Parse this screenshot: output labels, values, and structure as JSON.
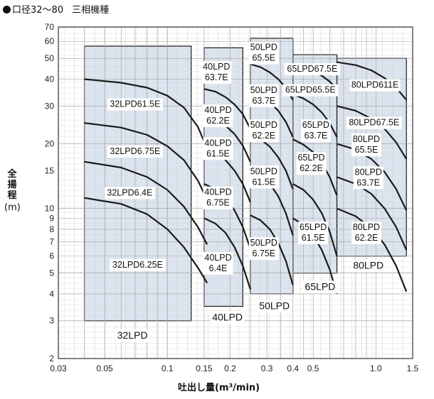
{
  "header": {
    "title": "口径32～80",
    "subtitle": "三相機種"
  },
  "chart_data": {
    "type": "area",
    "title": "口径32～80　三相機種",
    "xlabel": "吐出し量(m³/min)",
    "ylabel": [
      "全",
      "揚",
      "程",
      "(m)"
    ],
    "xscale": "log",
    "yscale": "log",
    "xlim": [
      0.03,
      1.5
    ],
    "ylim": [
      2,
      70
    ],
    "grid": true,
    "x_ticks": [
      {
        "v": 0.03,
        "label": "0.03"
      },
      {
        "v": 0.05,
        "label": "0.05"
      },
      {
        "v": 0.1,
        "label": "0.1"
      },
      {
        "v": 0.15,
        "label": "0.15"
      },
      {
        "v": 0.2,
        "label": "0.2"
      },
      {
        "v": 0.3,
        "label": "0.3"
      },
      {
        "v": 0.4,
        "label": "0.4"
      },
      {
        "v": 0.5,
        "label": "0.5"
      },
      {
        "v": 1.0,
        "label": "1.0"
      },
      {
        "v": 1.5,
        "label": "1.5"
      }
    ],
    "y_ticks": [
      {
        "v": 2,
        "label": "2"
      },
      {
        "v": 3,
        "label": "3"
      },
      {
        "v": 4,
        "label": "4"
      },
      {
        "v": 5,
        "label": "5"
      },
      {
        "v": 6,
        "label": "6"
      },
      {
        "v": 7,
        "label": "7"
      },
      {
        "v": 8,
        "label": "8"
      },
      {
        "v": 9,
        "label": "9"
      },
      {
        "v": 10,
        "label": "10"
      },
      {
        "v": 15,
        "label": "15"
      },
      {
        "v": 20,
        "label": "20"
      },
      {
        "v": 30,
        "label": "30"
      },
      {
        "v": 40,
        "label": "40"
      },
      {
        "v": 50,
        "label": "50"
      },
      {
        "v": 60,
        "label": "60"
      },
      {
        "v": 70,
        "label": "70"
      }
    ],
    "families": [
      {
        "name": "32LPD",
        "region": {
          "x": [
            0.04,
            0.13
          ],
          "y": [
            3,
            57
          ]
        },
        "label_at": {
          "x": 0.068,
          "y": 2.55
        },
        "models": [
          {
            "name": "32LPD61.5E",
            "curve": {
              "x": [
                0.04,
                0.06,
                0.08,
                0.1,
                0.12,
                0.14,
                0.155
              ],
              "y": [
                40,
                38.5,
                36.5,
                33.5,
                29.5,
                24,
                19
              ]
            },
            "label_at": {
              "x": 0.07,
              "y": 30.5
            }
          },
          {
            "name": "32LPD6.75E",
            "curve": {
              "x": [
                0.04,
                0.06,
                0.08,
                0.1,
                0.12,
                0.14,
                0.155
              ],
              "y": [
                25,
                23.8,
                22,
                19.5,
                16.8,
                13.5,
                11
              ]
            },
            "label_at": {
              "x": 0.07,
              "y": 18.4
            }
          },
          {
            "name": "32LPD6.4E",
            "curve": {
              "x": [
                0.04,
                0.06,
                0.08,
                0.1,
                0.12,
                0.14,
                0.155
              ],
              "y": [
                16.5,
                15.5,
                14,
                12.2,
                10.2,
                8.2,
                6.8
              ]
            },
            "label_at": {
              "x": 0.066,
              "y": 11.8
            }
          },
          {
            "name": "32LPD6.25E",
            "curve": {
              "x": [
                0.04,
                0.06,
                0.08,
                0.1,
                0.12,
                0.14,
                0.155
              ],
              "y": [
                11.2,
                10.5,
                9.4,
                8,
                6.6,
                5.3,
                4.5
              ]
            },
            "label_at": {
              "x": 0.072,
              "y": 5.45
            }
          }
        ]
      },
      {
        "name": "40LPD",
        "region": {
          "x": [
            0.15,
            0.23
          ],
          "y": [
            3.5,
            56
          ]
        },
        "label_at": {
          "x": 0.194,
          "y": 3.1
        },
        "models": [
          {
            "name": [
              "40LPD",
              "63.7E"
            ],
            "curve": {
              "x": [
                0.15,
                0.17,
                0.19,
                0.21,
                0.23,
                0.25
              ],
              "y": [
                36,
                35,
                33,
                30.5,
                27.5,
                23.5
              ]
            },
            "label_at": {
              "x": 0.172,
              "y": 43
            }
          },
          {
            "name": [
              "40LPD",
              "62.2E"
            ],
            "curve": {
              "x": [
                0.15,
                0.17,
                0.19,
                0.21,
                0.23,
                0.25
              ],
              "y": [
                27,
                26,
                24.3,
                22.2,
                19.6,
                16.5
              ]
            },
            "label_at": {
              "x": 0.175,
              "y": 27
            }
          },
          {
            "name": [
              "40LPD",
              "61.5E"
            ],
            "curve": {
              "x": [
                0.15,
                0.17,
                0.19,
                0.21,
                0.23,
                0.25
              ],
              "y": [
                19,
                18.2,
                16.8,
                15,
                13,
                10.7
              ]
            },
            "label_at": {
              "x": 0.175,
              "y": 19
            }
          },
          {
            "name": [
              "40LPD",
              "6.75E"
            ],
            "curve": {
              "x": [
                0.15,
                0.17,
                0.19,
                0.21,
                0.23,
                0.25
              ],
              "y": [
                13,
                12.3,
                11.2,
                9.8,
                8.2,
                6.5
              ]
            },
            "label_at": {
              "x": 0.175,
              "y": 11.2
            }
          },
          {
            "name": [
              "40LPD",
              "6.4E"
            ],
            "curve": {
              "x": [
                0.15,
                0.17,
                0.19,
                0.21,
                0.23,
                0.25
              ],
              "y": [
                9,
                8.5,
                7.7,
                6.6,
                5.4,
                4.2
              ]
            },
            "label_at": {
              "x": 0.175,
              "y": 5.55
            }
          }
        ]
      },
      {
        "name": "50LPD",
        "region": {
          "x": [
            0.25,
            0.4
          ],
          "y": [
            4,
            62
          ]
        },
        "label_at": {
          "x": 0.326,
          "y": 3.5
        },
        "models": [
          {
            "name": [
              "50LPD",
              "65.5E"
            ],
            "curve": {
              "x": [
                0.25,
                0.28,
                0.31,
                0.34,
                0.37,
                0.4
              ],
              "y": [
                47,
                45.5,
                43,
                40,
                36.5,
                32
              ]
            },
            "label_at": {
              "x": 0.29,
              "y": 53
            }
          },
          {
            "name": [
              "50LPD",
              "63.7E"
            ],
            "curve": {
              "x": [
                0.25,
                0.28,
                0.31,
                0.34,
                0.37,
                0.4
              ],
              "y": [
                35,
                33.5,
                31.3,
                28.5,
                25.3,
                21.5
              ]
            },
            "label_at": {
              "x": 0.29,
              "y": 33.5
            }
          },
          {
            "name": [
              "50LPD",
              "62.2E"
            ],
            "curve": {
              "x": [
                0.25,
                0.28,
                0.31,
                0.34,
                0.37,
                0.4
              ],
              "y": [
                22,
                21,
                19.4,
                17.3,
                15,
                12.3
              ]
            },
            "label_at": {
              "x": 0.29,
              "y": 23
            }
          },
          {
            "name": [
              "50LPD",
              "61.5E"
            ],
            "curve": {
              "x": [
                0.25,
                0.28,
                0.31,
                0.34,
                0.37,
                0.4
              ],
              "y": [
                15,
                14.2,
                13,
                11.4,
                9.5,
                7.5
              ]
            },
            "label_at": {
              "x": 0.29,
              "y": 14
            }
          },
          {
            "name": [
              "50LPD",
              "6.75E"
            ],
            "curve": {
              "x": [
                0.25,
                0.28,
                0.31,
                0.34,
                0.37,
                0.4
              ],
              "y": [
                9.3,
                8.8,
                8,
                6.9,
                5.7,
                4.4
              ]
            },
            "label_at": {
              "x": 0.29,
              "y": 6.5
            }
          }
        ]
      },
      {
        "name": "65LPD",
        "region": {
          "x": [
            0.4,
            0.65
          ],
          "y": [
            5,
            52
          ]
        },
        "label_at": {
          "x": 0.54,
          "y": 4.3
        },
        "models": [
          {
            "name": "65LPD67.5E",
            "curve": {
              "x": [
                0.4,
                0.45,
                0.5,
                0.55,
                0.6,
                0.65
              ],
              "y": [
                46,
                45,
                43.5,
                41.5,
                39,
                36
              ]
            },
            "label_at": {
              "x": 0.495,
              "y": 44.5
            }
          },
          {
            "name": "65LPD65.5E",
            "curve": {
              "x": [
                0.4,
                0.45,
                0.5,
                0.55,
                0.6,
                0.65
              ],
              "y": [
                34,
                32.5,
                30.5,
                28,
                25,
                21.5
              ]
            },
            "label_at": {
              "x": 0.485,
              "y": 35.5
            }
          },
          {
            "name": [
              "65LPD",
              "63.7E"
            ],
            "curve": {
              "x": [
                0.4,
                0.45,
                0.5,
                0.55,
                0.6,
                0.65
              ],
              "y": [
                21,
                19.8,
                18.3,
                16.3,
                14,
                11.5
              ]
            },
            "label_at": {
              "x": 0.515,
              "y": 23
            }
          },
          {
            "name": [
              "65LPD",
              "62.2E"
            ],
            "curve": {
              "x": [
                0.4,
                0.45,
                0.5,
                0.55,
                0.6,
                0.65
              ],
              "y": [
                13,
                12.2,
                11,
                9.5,
                7.8,
                6
              ]
            },
            "label_at": {
              "x": 0.49,
              "y": 16.2
            }
          },
          {
            "name": [
              "65LPD",
              "61.5E"
            ],
            "curve": {
              "x": [
                0.4,
                0.45,
                0.5,
                0.55,
                0.6,
                0.65
              ],
              "y": [
                9,
                8.4,
                7.5,
                6.4,
                5.2,
                4
              ]
            },
            "label_at": {
              "x": 0.5,
              "y": 7.7
            }
          }
        ]
      },
      {
        "name": "80LPD",
        "region": {
          "x": [
            0.65,
            1.4
          ],
          "y": [
            6,
            50
          ]
        },
        "label_at": {
          "x": 0.92,
          "y": 5.4
        },
        "models": [
          {
            "name": "80LPD611E",
            "curve": {
              "x": [
                0.65,
                0.8,
                0.95,
                1.1,
                1.25,
                1.4
              ],
              "y": [
                48,
                46.5,
                44,
                40.5,
                36.5,
                32
              ]
            },
            "label_at": {
              "x": 0.99,
              "y": 37.5
            }
          },
          {
            "name": "80LPD67.5E",
            "curve": {
              "x": [
                0.65,
                0.8,
                0.95,
                1.1,
                1.25,
                1.4
              ],
              "y": [
                30,
                28.5,
                26.2,
                23.5,
                20.3,
                17
              ]
            },
            "label_at": {
              "x": 0.98,
              "y": 25
            }
          },
          {
            "name": [
              "80LPD",
              "65.5E"
            ],
            "curve": {
              "x": [
                0.65,
                0.8,
                0.95,
                1.1,
                1.25,
                1.4
              ],
              "y": [
                20,
                18.8,
                17,
                14.8,
                12.3,
                9.8
              ]
            },
            "label_at": {
              "x": 0.9,
              "y": 19.8
            }
          },
          {
            "name": [
              "80LPD",
              "63.7E"
            ],
            "curve": {
              "x": [
                0.65,
                0.8,
                0.95,
                1.1,
                1.25,
                1.4
              ],
              "y": [
                14,
                13,
                11.7,
                10,
                8.2,
                6.4
              ]
            },
            "label_at": {
              "x": 0.92,
              "y": 13.9
            }
          },
          {
            "name": [
              "80LPD",
              "62.2E"
            ],
            "curve": {
              "x": [
                0.65,
                0.8,
                0.95,
                1.1,
                1.25,
                1.4
              ],
              "y": [
                10,
                9.2,
                8.1,
                6.8,
                5.4,
                4.1
              ]
            },
            "label_at": {
              "x": 0.9,
              "y": 7.7
            }
          }
        ]
      }
    ]
  }
}
